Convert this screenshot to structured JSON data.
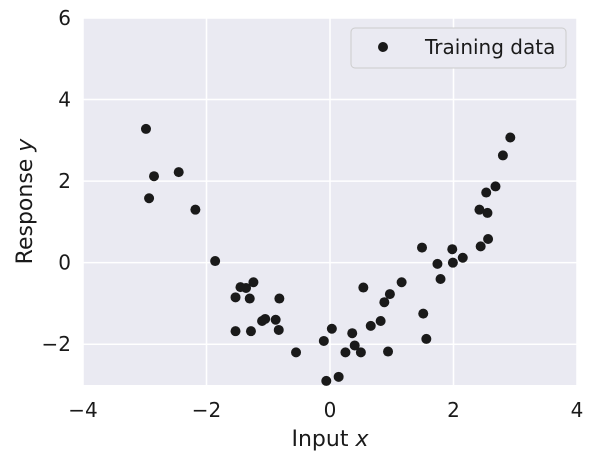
{
  "chart_data": {
    "type": "scatter",
    "xlabel": "Input x",
    "xlabel_prefix": "Input ",
    "xlabel_var": "x",
    "ylabel": "Response y",
    "ylabel_prefix": "Response ",
    "ylabel_var": "y",
    "xlim": [
      -4,
      4
    ],
    "ylim": [
      -3,
      6
    ],
    "xticks": [
      -4,
      -2,
      0,
      2,
      4
    ],
    "yticks": [
      -2,
      0,
      2,
      4,
      6
    ],
    "grid": true,
    "legend_position": "top-right",
    "background_color": "#eaeaf2",
    "grid_color": "#ffffff",
    "marker_color": "#1a1a1a",
    "series": [
      {
        "name": "Training data",
        "points": [
          [
            -2.98,
            3.28
          ],
          [
            -2.93,
            1.58
          ],
          [
            -2.85,
            2.12
          ],
          [
            -2.45,
            2.22
          ],
          [
            -2.18,
            1.3
          ],
          [
            -1.86,
            0.04
          ],
          [
            -1.53,
            -0.85
          ],
          [
            -1.53,
            -1.68
          ],
          [
            -1.45,
            -0.6
          ],
          [
            -1.36,
            -0.62
          ],
          [
            -1.3,
            -0.88
          ],
          [
            -1.28,
            -1.68
          ],
          [
            -1.24,
            -0.48
          ],
          [
            -1.1,
            -1.43
          ],
          [
            -1.05,
            -1.38
          ],
          [
            -0.88,
            -1.4
          ],
          [
            -0.83,
            -1.65
          ],
          [
            -0.82,
            -0.88
          ],
          [
            -0.55,
            -2.2
          ],
          [
            -0.1,
            -1.92
          ],
          [
            -0.06,
            -2.9
          ],
          [
            0.03,
            -1.62
          ],
          [
            0.14,
            -2.8
          ],
          [
            0.25,
            -2.2
          ],
          [
            0.36,
            -1.73
          ],
          [
            0.4,
            -2.03
          ],
          [
            0.5,
            -2.2
          ],
          [
            0.54,
            -0.61
          ],
          [
            0.66,
            -1.55
          ],
          [
            0.82,
            -1.43
          ],
          [
            0.88,
            -0.97
          ],
          [
            0.94,
            -2.18
          ],
          [
            0.97,
            -0.77
          ],
          [
            1.16,
            -0.48
          ],
          [
            1.49,
            0.37
          ],
          [
            1.51,
            -1.25
          ],
          [
            1.56,
            -1.87
          ],
          [
            1.74,
            -0.03
          ],
          [
            1.79,
            -0.4
          ],
          [
            1.98,
            0.33
          ],
          [
            1.99,
            0.0
          ],
          [
            2.15,
            0.12
          ],
          [
            2.42,
            1.3
          ],
          [
            2.44,
            0.4
          ],
          [
            2.53,
            1.72
          ],
          [
            2.55,
            1.22
          ],
          [
            2.56,
            0.58
          ],
          [
            2.68,
            1.87
          ],
          [
            2.8,
            2.63
          ],
          [
            2.92,
            3.07
          ]
        ]
      }
    ]
  }
}
